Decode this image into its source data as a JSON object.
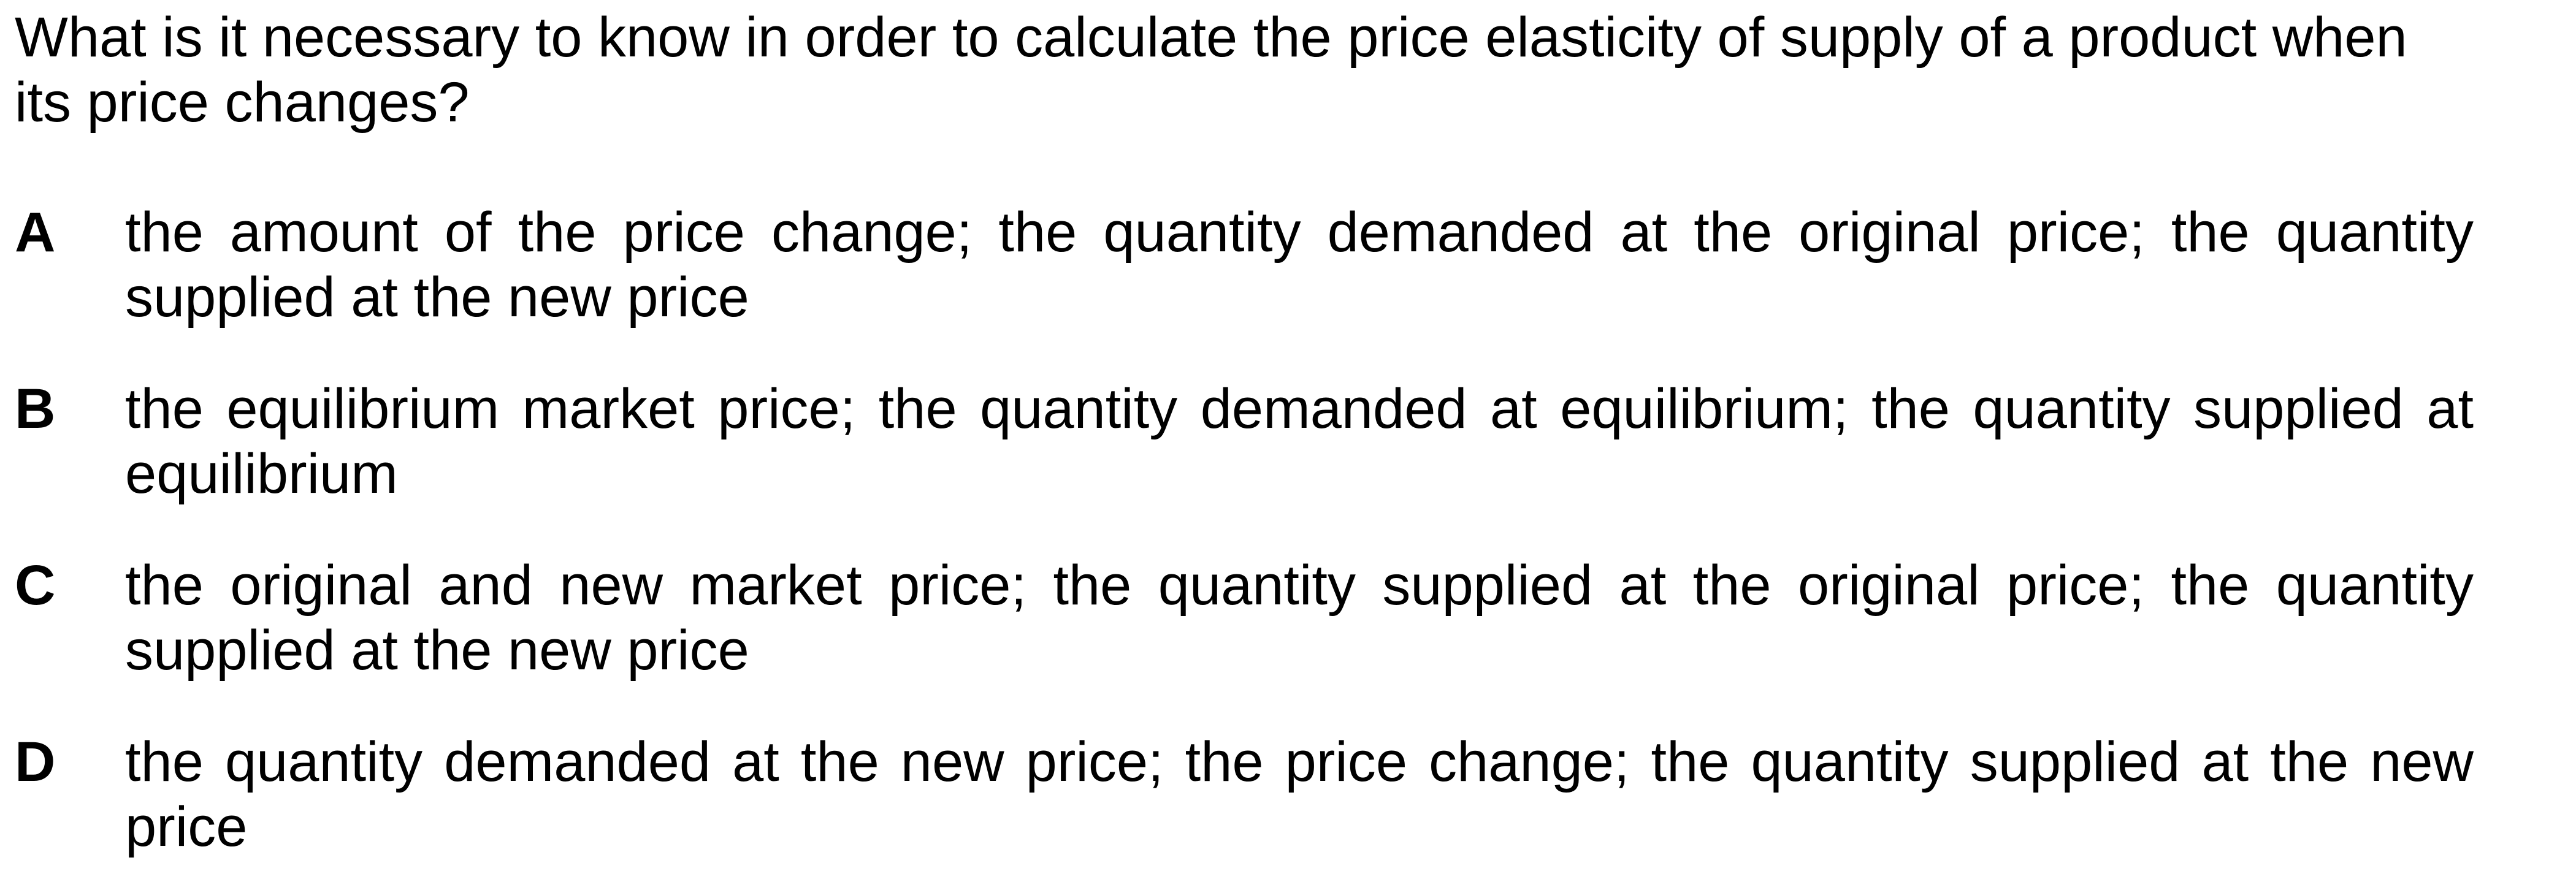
{
  "question": {
    "text": "What is it necessary to know in order to calculate the price elasticity of supply of a product when its price changes?"
  },
  "options": [
    {
      "letter": "A",
      "text": "the amount of the price change; the quantity demanded at the original price; the quantity supplied at the new price"
    },
    {
      "letter": "B",
      "text": "the equilibrium market price; the quantity demanded at equilibrium; the quantity supplied at equilibrium"
    },
    {
      "letter": "C",
      "text": "the original and new market price; the quantity supplied at the original price; the quantity supplied at the new price"
    },
    {
      "letter": "D",
      "text": "the quantity demanded at the new price; the price change; the quantity supplied at the new price"
    }
  ]
}
